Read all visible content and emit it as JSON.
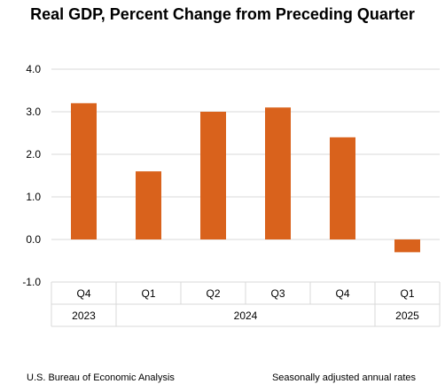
{
  "chart_data": {
    "type": "bar",
    "title": "Real GDP, Percent Change from Preceding Quarter",
    "categories": [
      "Q4",
      "Q1",
      "Q2",
      "Q3",
      "Q4",
      "Q1"
    ],
    "years": [
      {
        "label": "2023",
        "span": [
          0,
          0
        ]
      },
      {
        "label": "2024",
        "span": [
          1,
          4
        ]
      },
      {
        "label": "2025",
        "span": [
          5,
          5
        ]
      }
    ],
    "values": [
      3.2,
      1.6,
      3.0,
      3.1,
      2.4,
      -0.3
    ],
    "ylim": [
      -1.0,
      4.0
    ],
    "yticks": [
      "4.0",
      "3.0",
      "2.0",
      "1.0",
      "0.0",
      "-1.0"
    ],
    "grid": true,
    "bar_color": "#d9621c",
    "xlabel": "",
    "ylabel": ""
  },
  "footer": {
    "source": "U.S. Bureau of Economic Analysis",
    "note": "Seasonally adjusted annual rates"
  }
}
